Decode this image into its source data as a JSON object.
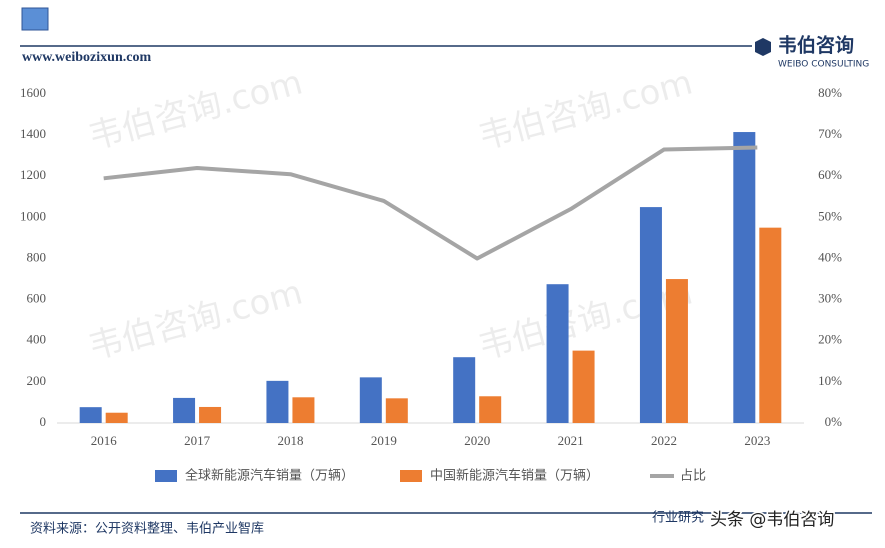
{
  "header": {
    "site": "www.weibozixun.com",
    "brand": "韦伯咨询",
    "brand_en": "WEIBO CONSULTING"
  },
  "watermark": "韦伯咨询.com",
  "footer": {
    "source": "资料来源：公开资料整理、韦伯产业智库",
    "right": "行业研究",
    "badge": "头条 @韦伯咨询"
  },
  "chart_data": {
    "type": "bar",
    "categories": [
      "2016",
      "2017",
      "2018",
      "2019",
      "2020",
      "2021",
      "2022",
      "2023"
    ],
    "series": [
      {
        "name": "全球新能源汽车销量（万辆）",
        "color": "#4472c4",
        "values": [
          77,
          122,
          205,
          222,
          320,
          675,
          1050,
          1415
        ]
      },
      {
        "name": "中国新能源汽车销量（万辆）",
        "color": "#ed7d31",
        "values": [
          50,
          78,
          125,
          120,
          130,
          352,
          700,
          950
        ]
      },
      {
        "name": "占比",
        "type": "line",
        "axis": "y2",
        "color": "#a5a5a5",
        "values": [
          59.5,
          62,
          60.5,
          54,
          40,
          52,
          66.5,
          67
        ]
      }
    ],
    "ylim": [
      0,
      1600
    ],
    "yticks": [
      0,
      200,
      400,
      600,
      800,
      1000,
      1200,
      1400,
      1600
    ],
    "y2lim": [
      0,
      80
    ],
    "y2ticks": [
      {
        "value": 0,
        "label": "0%"
      },
      {
        "value": 10,
        "label": "10%"
      },
      {
        "value": 20,
        "label": "20%"
      },
      {
        "value": 30,
        "label": "30%"
      },
      {
        "value": 40,
        "label": "40%"
      },
      {
        "value": 50,
        "label": "50%"
      },
      {
        "value": 60,
        "label": "60%"
      },
      {
        "value": 70,
        "label": "70%"
      },
      {
        "value": 80,
        "label": "80%"
      }
    ],
    "grid": false,
    "legend": "bottom"
  }
}
